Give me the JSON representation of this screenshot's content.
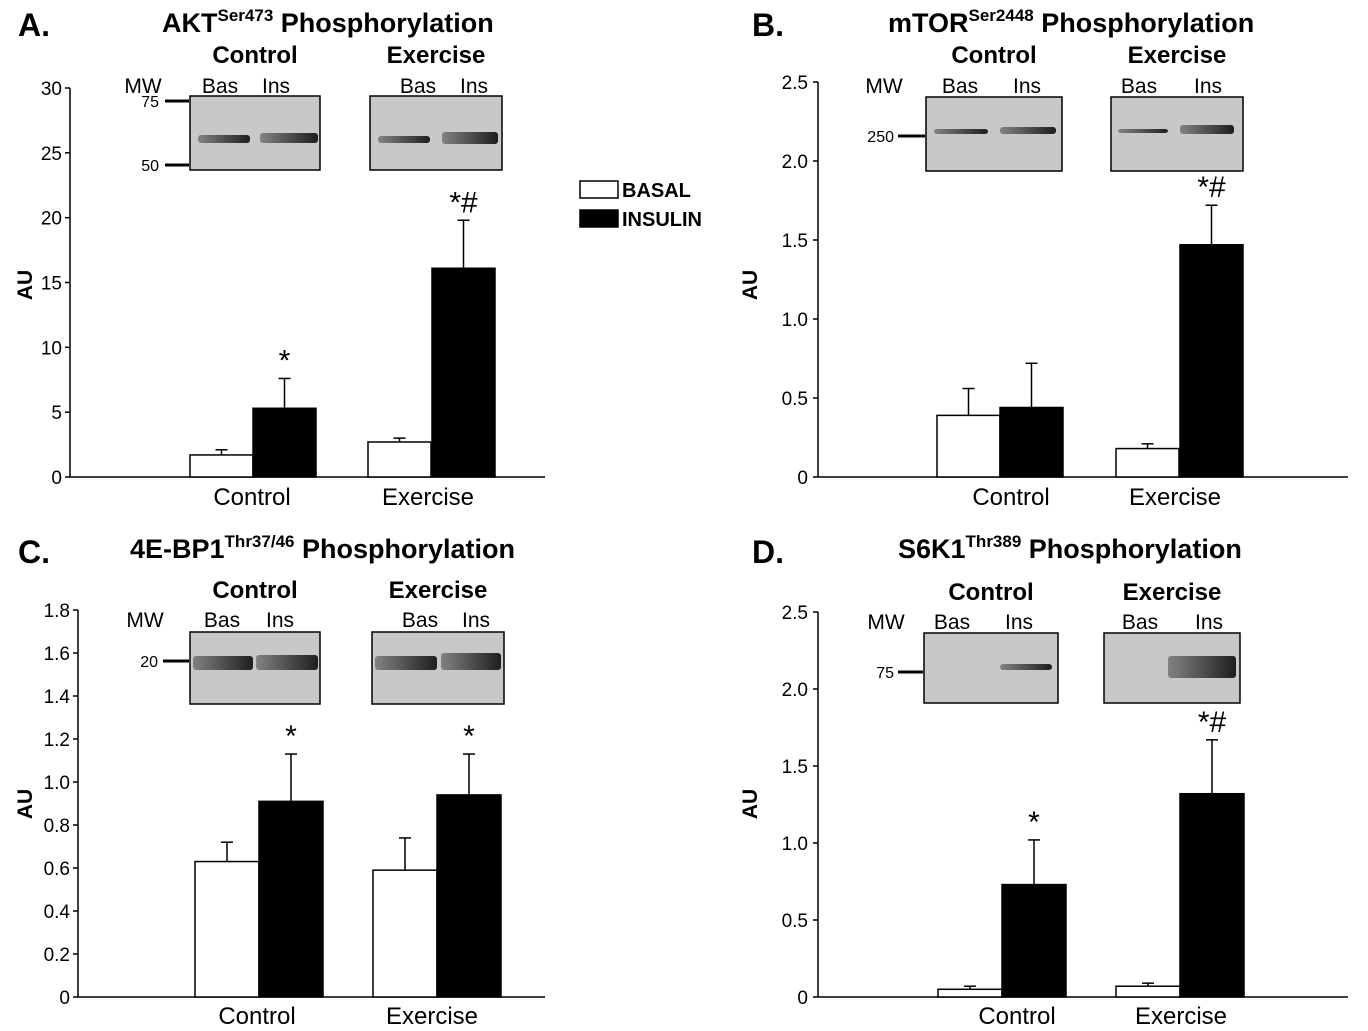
{
  "legend": {
    "entries": [
      {
        "label": "BASAL",
        "color": "#ffffff"
      },
      {
        "label": "INSULIN",
        "color": "#000000"
      }
    ],
    "placement": "panel-A-right"
  },
  "chart_data": [
    {
      "panel": "A.",
      "title": "AKT",
      "title_sup": "Ser473",
      "title_suffix": " Phosphorylation",
      "type": "bar",
      "ylabel": "AU",
      "ylim": [
        0,
        30
      ],
      "yticks": [
        "0",
        "5",
        "10",
        "15",
        "20",
        "25",
        "30"
      ],
      "tick_values": [
        0,
        5,
        10,
        15,
        20,
        25,
        30
      ],
      "categories": [
        "Control",
        "Exercise"
      ],
      "series": [
        {
          "name": "BASAL",
          "values": [
            1.7,
            2.7
          ],
          "errors": [
            0.4,
            0.3
          ]
        },
        {
          "name": "INSULIN",
          "values": [
            5.3,
            16.1
          ],
          "errors": [
            2.3,
            3.7
          ]
        }
      ],
      "annotations": [
        "",
        "*",
        "",
        "*#"
      ],
      "blot": {
        "groups": [
          "Control",
          "Exercise"
        ],
        "lanes": [
          "Bas",
          "Ins"
        ],
        "mw_label": "MW",
        "mw_markers": [
          "75",
          "50"
        ]
      }
    },
    {
      "panel": "B.",
      "title": "mTOR",
      "title_sup": "Ser2448",
      "title_suffix": " Phosphorylation",
      "type": "bar",
      "ylabel": "AU",
      "ylim": [
        0,
        2.5
      ],
      "yticks": [
        "0",
        "0.5",
        "1.0",
        "1.5",
        "2.0",
        "2.5"
      ],
      "tick_values": [
        0,
        0.5,
        1.0,
        1.5,
        2.0,
        2.5
      ],
      "categories": [
        "Control",
        "Exercise"
      ],
      "series": [
        {
          "name": "BASAL",
          "values": [
            0.39,
            0.18
          ],
          "errors": [
            0.17,
            0.03
          ]
        },
        {
          "name": "INSULIN",
          "values": [
            0.44,
            1.47
          ],
          "errors": [
            0.28,
            0.25
          ]
        }
      ],
      "annotations": [
        "",
        "",
        "",
        "*#"
      ],
      "blot": {
        "groups": [
          "Control",
          "Exercise"
        ],
        "lanes": [
          "Bas",
          "Ins"
        ],
        "mw_label": "MW",
        "mw_markers": [
          "250"
        ]
      }
    },
    {
      "panel": "C.",
      "title": "4E-BP1",
      "title_sup": "Thr37/46",
      "title_suffix": " Phosphorylation",
      "type": "bar",
      "ylabel": "AU",
      "ylim": [
        0,
        1.8
      ],
      "yticks": [
        "0",
        "0.2",
        "0.4",
        "0.6",
        "0.8",
        "1.0",
        "1.2",
        "1.4",
        "1.6",
        "1.8"
      ],
      "tick_values": [
        0,
        0.2,
        0.4,
        0.6,
        0.8,
        1.0,
        1.2,
        1.4,
        1.6,
        1.8
      ],
      "categories": [
        "Control",
        "Exercise"
      ],
      "series": [
        {
          "name": "BASAL",
          "values": [
            0.63,
            0.59
          ],
          "errors": [
            0.09,
            0.15
          ]
        },
        {
          "name": "INSULIN",
          "values": [
            0.91,
            0.94
          ],
          "errors": [
            0.22,
            0.19
          ]
        }
      ],
      "annotations": [
        "",
        "*",
        "",
        "*"
      ],
      "blot": {
        "groups": [
          "Control",
          "Exercise"
        ],
        "lanes": [
          "Bas",
          "Ins"
        ],
        "mw_label": "MW",
        "mw_markers": [
          "20"
        ]
      }
    },
    {
      "panel": "D.",
      "title": "S6K1",
      "title_sup": "Thr389",
      "title_suffix": " Phosphorylation",
      "type": "bar",
      "ylabel": "AU",
      "ylim": [
        0,
        2.5
      ],
      "yticks": [
        "0",
        "0.5",
        "1.0",
        "1.5",
        "2.0",
        "2.5"
      ],
      "tick_values": [
        0,
        0.5,
        1.0,
        1.5,
        2.0,
        2.5
      ],
      "categories": [
        "Control",
        "Exercise"
      ],
      "series": [
        {
          "name": "BASAL",
          "values": [
            0.05,
            0.07
          ],
          "errors": [
            0.02,
            0.02
          ]
        },
        {
          "name": "INSULIN",
          "values": [
            0.73,
            1.32
          ],
          "errors": [
            0.29,
            0.35
          ]
        }
      ],
      "annotations": [
        "",
        "*",
        "",
        "*#"
      ],
      "blot": {
        "groups": [
          "Control",
          "Exercise"
        ],
        "lanes": [
          "Bas",
          "Ins"
        ],
        "mw_label": "MW",
        "mw_markers": [
          "75"
        ]
      }
    }
  ]
}
